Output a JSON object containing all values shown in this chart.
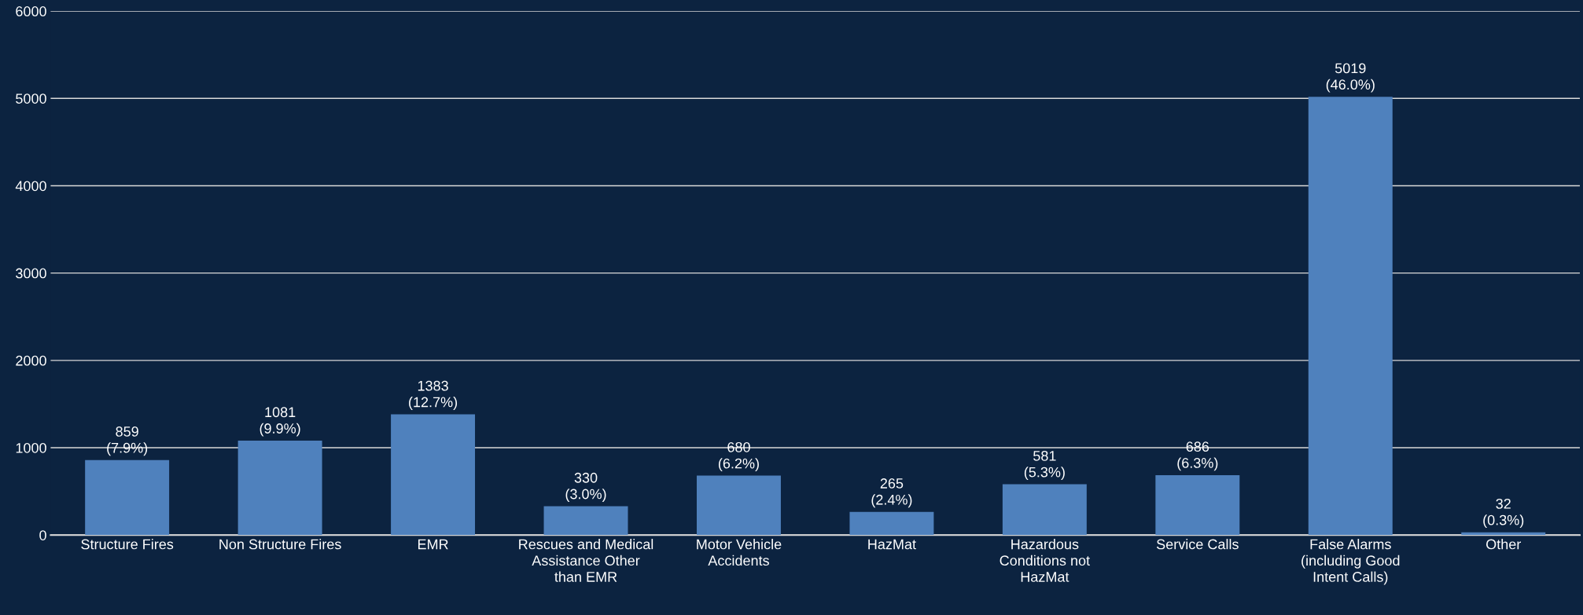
{
  "chart_data": {
    "type": "bar",
    "categories": [
      "Structure Fires",
      "Non Structure Fires",
      "EMR",
      "Rescues and Medical\nAssistance Other\nthan EMR",
      "Motor Vehicle\nAccidents",
      "HazMat",
      "Hazardous\nConditions not\nHazMat",
      "Service Calls",
      "False Alarms\n(including Good\nIntent Calls)",
      "Other"
    ],
    "values": [
      859,
      1081,
      1383,
      330,
      680,
      265,
      581,
      686,
      5019,
      32
    ],
    "value_labels": [
      "859\n(7.9%)",
      "1081\n(9.9%)",
      "1383\n(12.7%)",
      "330\n(3.0%)",
      "680\n(6.2%)",
      "265\n(2.4%)",
      "581\n(5.3%)",
      "686\n(6.3%)",
      "5019\n(46.0%)",
      "32\n(0.3%)"
    ],
    "color": "#4f81bd",
    "ylim": [
      0,
      6000
    ],
    "yticks": [
      0,
      1000,
      2000,
      3000,
      4000,
      5000,
      6000
    ],
    "grid": "y",
    "legend": false
  }
}
